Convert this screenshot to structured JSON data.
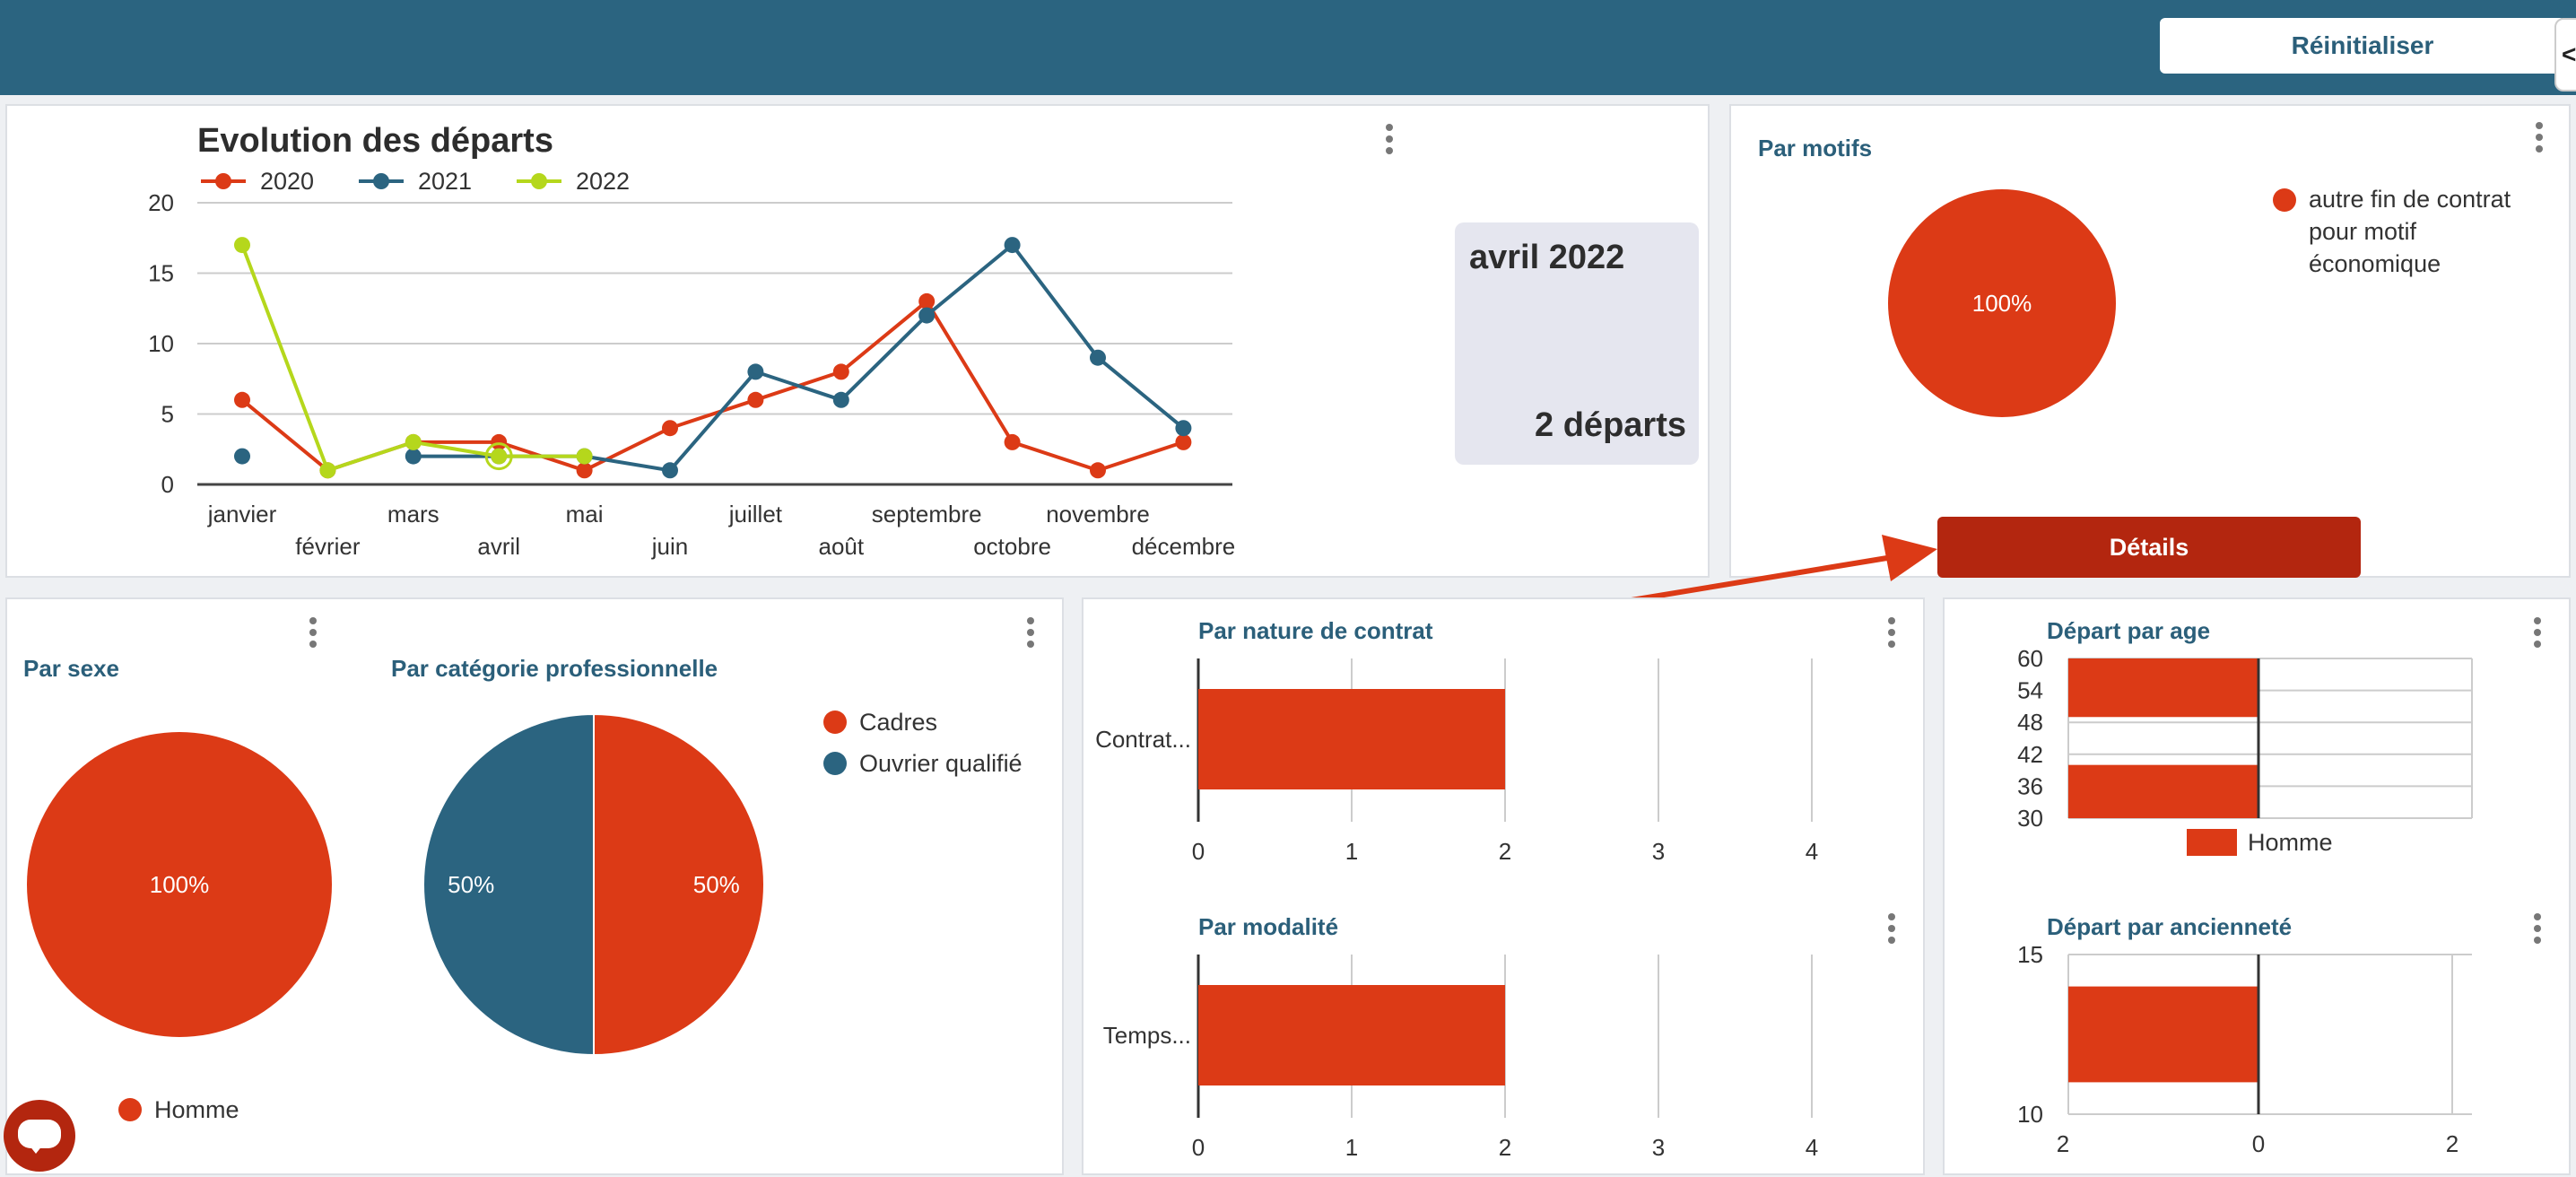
{
  "header": {
    "reset_label": "Réinitialiser",
    "collapse_label": "<"
  },
  "evolution": {
    "title": "Evolution des départs",
    "selection": {
      "month": "avril 2022",
      "count_text": "2 départs"
    }
  },
  "motifs": {
    "title": "Par motifs",
    "details_label": "Détails"
  },
  "sexe": {
    "title": "Par sexe"
  },
  "categorie": {
    "title": "Par catégorie professionnelle"
  },
  "nature": {
    "title": "Par nature de contrat"
  },
  "modalite": {
    "title": "Par modalité"
  },
  "age": {
    "title": "Départ par age"
  },
  "anciennete": {
    "title": "Départ par ancienneté"
  },
  "colors": {
    "red": "#dc3a16",
    "blue": "#2b6480",
    "lime": "#b5d71c",
    "dark_red": "#b3260f",
    "header": "#2b6480"
  },
  "icons": [
    "more-vert-icon",
    "chat-icon",
    "arrow-annotation"
  ],
  "chart_data": [
    {
      "id": "evolution",
      "type": "line",
      "title": "Evolution des départs",
      "categories": [
        "janvier",
        "février",
        "mars",
        "avril",
        "mai",
        "juin",
        "juillet",
        "août",
        "septembre",
        "octobre",
        "novembre",
        "décembre"
      ],
      "series": [
        {
          "name": "2020",
          "color": "#dc3a16",
          "values": [
            6,
            1,
            3,
            3,
            1,
            4,
            6,
            8,
            13,
            3,
            1,
            3
          ]
        },
        {
          "name": "2021",
          "color": "#2b6480",
          "values": [
            2,
            null,
            2,
            2,
            2,
            1,
            8,
            6,
            12,
            17,
            9,
            4
          ]
        },
        {
          "name": "2022",
          "color": "#b5d71c",
          "values": [
            17,
            1,
            3,
            2,
            2,
            null,
            null,
            null,
            null,
            null,
            null,
            null
          ]
        }
      ],
      "y_ticks": [
        "0",
        "5",
        "10",
        "15",
        "20"
      ],
      "ylim": [
        0,
        20
      ],
      "legend_position": "top-left",
      "grid": true
    },
    {
      "id": "motifs",
      "type": "pie",
      "slices": [
        {
          "label": "autre fin de contrat pour motif économique",
          "value": 100,
          "display": "100%",
          "color": "#dc3a16"
        }
      ]
    },
    {
      "id": "sexe",
      "type": "pie",
      "slices": [
        {
          "label": "Homme",
          "value": 100,
          "display": "100%",
          "color": "#dc3a16"
        }
      ]
    },
    {
      "id": "categorie",
      "type": "pie",
      "slices": [
        {
          "label": "Cadres",
          "value": 50,
          "display": "50%",
          "color": "#dc3a16"
        },
        {
          "label": "Ouvrier qualifié",
          "value": 50,
          "display": "50%",
          "color": "#2b6480"
        }
      ]
    },
    {
      "id": "nature",
      "type": "bar",
      "orientation": "horizontal",
      "categories": [
        "Contrat..."
      ],
      "values": [
        2
      ],
      "x_ticks": [
        "0",
        "1",
        "2",
        "3",
        "4"
      ],
      "xlim": [
        0,
        4
      ],
      "color": "#dc3a16"
    },
    {
      "id": "modalite",
      "type": "bar",
      "orientation": "horizontal",
      "categories": [
        "Temps..."
      ],
      "values": [
        2
      ],
      "x_ticks": [
        "0",
        "1",
        "2",
        "3",
        "4"
      ],
      "xlim": [
        0,
        4
      ],
      "color": "#dc3a16"
    },
    {
      "id": "age",
      "type": "bar",
      "orientation": "horizontal",
      "y_ticks": [
        "60",
        "54",
        "48",
        "42",
        "36",
        "30"
      ],
      "ylim": [
        30,
        60
      ],
      "bars": [
        {
          "from": 49,
          "to": 60,
          "value": -1
        },
        {
          "from": 30,
          "to": 40,
          "value": -1
        }
      ],
      "series": [
        {
          "name": "Homme",
          "color": "#dc3a16"
        }
      ]
    },
    {
      "id": "anciennete",
      "type": "bar",
      "orientation": "horizontal",
      "y_ticks": [
        "15",
        "10"
      ],
      "ylim": [
        10,
        15
      ],
      "x_ticks": [
        "2",
        "0",
        "2"
      ],
      "xlim": [
        -2,
        2
      ],
      "bars": [
        {
          "from": 11,
          "to": 14,
          "value": -2
        }
      ],
      "color": "#dc3a16"
    }
  ]
}
